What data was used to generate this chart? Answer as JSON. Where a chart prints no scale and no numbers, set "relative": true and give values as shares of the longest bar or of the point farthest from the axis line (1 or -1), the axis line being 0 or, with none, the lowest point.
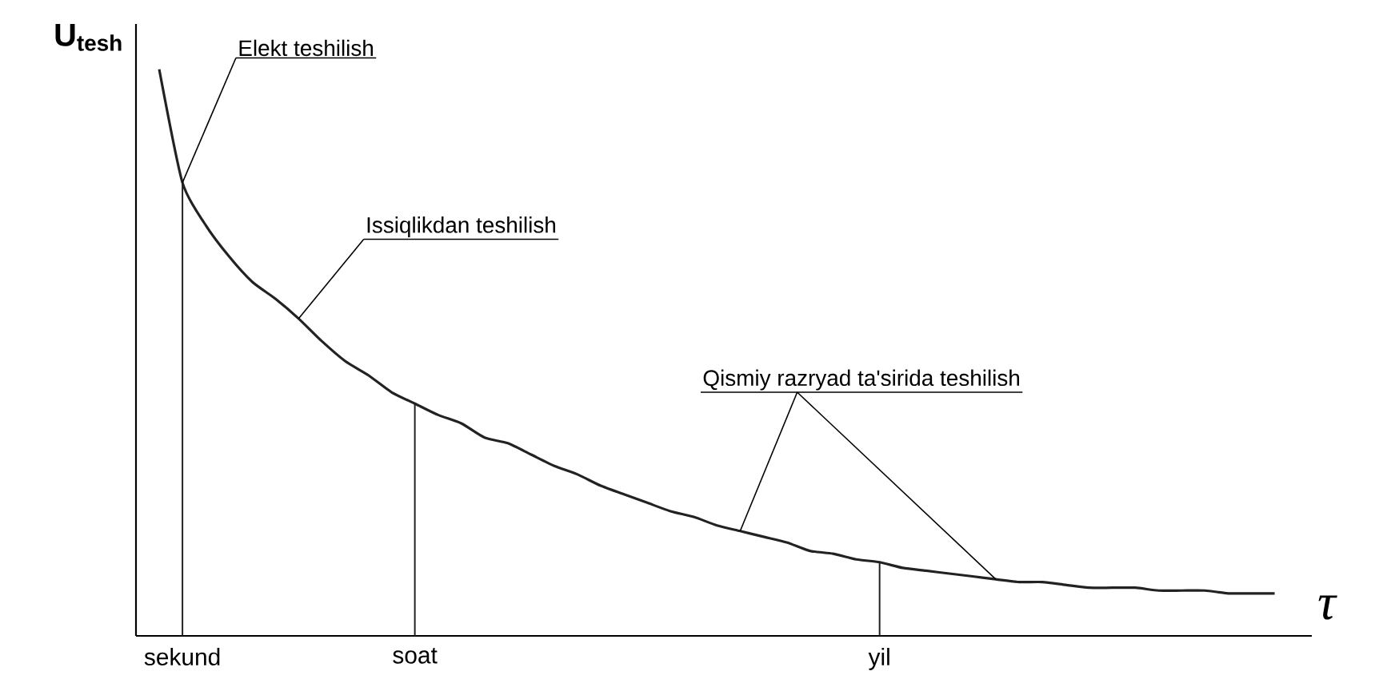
{
  "chart_data": {
    "type": "line",
    "relative": true,
    "ylabel": "U$_{tesh}$",
    "xlabel": "τ",
    "categories": [
      null,
      "sekund",
      null,
      null,
      null,
      null,
      null,
      null,
      null,
      null,
      null,
      "soat",
      null,
      null,
      null,
      null,
      null,
      null,
      null,
      null,
      null,
      null,
      null,
      null,
      null,
      null,
      null,
      null,
      null,
      null,
      null,
      "yil",
      null,
      null,
      null,
      null,
      null,
      null,
      null,
      null,
      null,
      null,
      null,
      null,
      null,
      null,
      null,
      null,
      null
    ],
    "series": [
      {
        "color": "#222222",
        "values": [
          1.0,
          0.8,
          0.725,
          0.67,
          0.625,
          0.595,
          0.56,
          0.52,
          0.485,
          0.46,
          0.43,
          0.41,
          0.39,
          0.375,
          0.35,
          0.34,
          0.32,
          0.3,
          0.285,
          0.265,
          0.25,
          0.235,
          0.22,
          0.21,
          0.195,
          0.185,
          0.175,
          0.165,
          0.15,
          0.145,
          0.135,
          0.13,
          0.12,
          0.115,
          0.11,
          0.105,
          0.1,
          0.095,
          0.095,
          0.09,
          0.085,
          0.085,
          0.085,
          0.08,
          0.08,
          0.08,
          0.075,
          0.075,
          0.075
        ]
      },
      {
        "type": "bar",
        "color": "#222222",
        "values": [
          null,
          0.8,
          null,
          null,
          null,
          null,
          null,
          null,
          null,
          null,
          null,
          0.41,
          null,
          null,
          null,
          null,
          null,
          null,
          null,
          null,
          null,
          null,
          null,
          null,
          null,
          null,
          null,
          null,
          null,
          null,
          null,
          0.13,
          null,
          null,
          null,
          null,
          null,
          null,
          null,
          null,
          null,
          null,
          null,
          null,
          null,
          null,
          null,
          null,
          null
        ]
      }
    ],
    "annotations": [
      "Elekt teshilish",
      "Issiqlikdan teshilish",
      "Qismiy razryad ta'sirida teshilish"
    ]
  }
}
